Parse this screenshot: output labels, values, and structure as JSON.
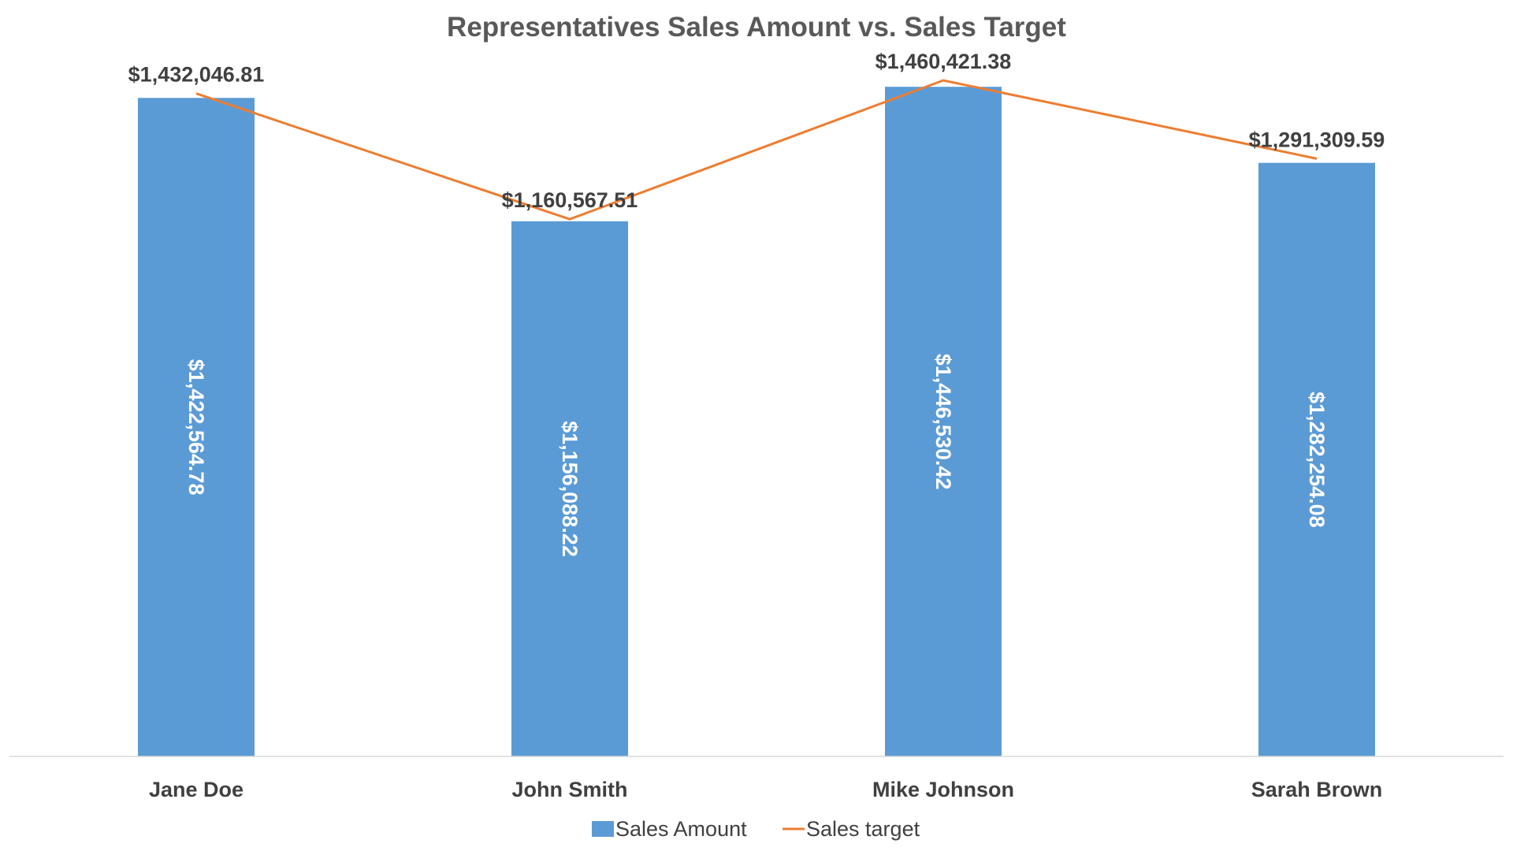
{
  "chart_data": {
    "type": "bar",
    "title": "Representatives Sales Amount vs. Sales Target",
    "categories": [
      "Jane Doe",
      "John Smith",
      "Mike Johnson",
      "Sarah Brown"
    ],
    "series": [
      {
        "name": "Sales Amount",
        "type": "bar",
        "values": [
          1422564.78,
          1156088.22,
          1446530.42,
          1282254.08
        ],
        "labels": [
          "$1,422,564.78",
          "$1,156,088.22",
          "$1,446,530.42",
          "$1,282,254.08"
        ],
        "color": "#5B9BD5"
      },
      {
        "name": "Sales target",
        "type": "line",
        "values": [
          1432046.81,
          1160567.51,
          1460421.38,
          1291309.59
        ],
        "labels": [
          "$1,432,046.81",
          "$1,160,567.51",
          "$1,460,421.38",
          "$1,291,309.59"
        ],
        "color": "#ED7D31"
      }
    ],
    "ylim": [
      0,
      1600000
    ],
    "xlabel": "",
    "ylabel": "",
    "grid": false,
    "y_axis_visible": false,
    "legend_position": "bottom",
    "colors": {
      "title": "#595959",
      "label_dark": "#404040",
      "label_inside": "#ffffff",
      "axis": "#D9D9D9"
    }
  }
}
